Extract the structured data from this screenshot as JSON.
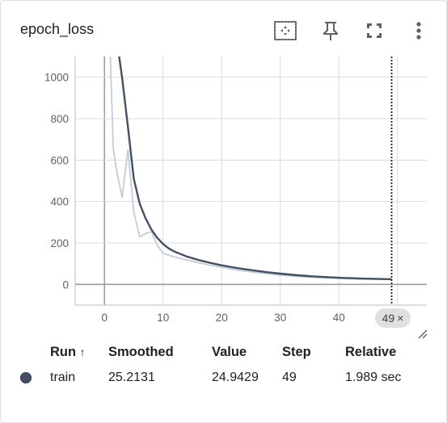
{
  "card": {
    "title": "epoch_loss"
  },
  "toolbar": {
    "icons": [
      "fit-domain-icon",
      "pin-icon",
      "fullscreen-icon",
      "more-vert-icon"
    ]
  },
  "chart_data": {
    "type": "line",
    "title": "epoch_loss",
    "xlabel": "",
    "ylabel": "",
    "xlim": [
      -5,
      55
    ],
    "ylim": [
      -100,
      1100
    ],
    "x_ticks": [
      0,
      10,
      20,
      30,
      40
    ],
    "y_ticks": [
      0,
      200,
      400,
      600,
      800,
      1000
    ],
    "grid": true,
    "series": [
      {
        "style": "raw",
        "color": "#c5cbd9",
        "x": [
          1,
          1.5,
          2,
          3,
          4,
          5,
          6,
          7,
          8,
          9,
          10,
          12,
          14,
          16,
          18,
          20,
          22,
          24,
          26,
          28,
          30,
          33,
          36,
          40,
          44,
          49
        ],
        "y": [
          1100,
          660,
          560,
          420,
          650,
          350,
          230,
          245,
          255,
          190,
          150,
          132,
          118,
          105,
          93,
          83,
          72,
          64,
          57,
          51,
          45,
          38,
          33,
          29,
          26,
          24.9429
        ]
      },
      {
        "style": "smoothed",
        "color": "#425066",
        "x": [
          2.5,
          3,
          4,
          5,
          6,
          7,
          8,
          9,
          10,
          11,
          12,
          14,
          16,
          18,
          20,
          22,
          24,
          26,
          28,
          30,
          33,
          36,
          40,
          44,
          49
        ],
        "y": [
          1100,
          1000,
          760,
          510,
          390,
          320,
          265,
          225,
          195,
          173,
          158,
          135,
          118,
          104,
          92,
          82,
          73,
          65,
          58,
          52,
          44,
          38,
          32,
          28,
          25.2131
        ]
      }
    ],
    "cursor_step": 49
  },
  "step_chip": {
    "label": "49",
    "close": "×"
  },
  "runs_table": {
    "headers": {
      "run": "Run",
      "sort_arrow": "↑",
      "smoothed": "Smoothed",
      "value": "Value",
      "step": "Step",
      "relative": "Relative"
    },
    "rows": [
      {
        "color": "#425066",
        "run": "train",
        "smoothed": "25.2131",
        "value": "24.9429",
        "step": "49",
        "relative": "1.989 sec"
      }
    ]
  }
}
